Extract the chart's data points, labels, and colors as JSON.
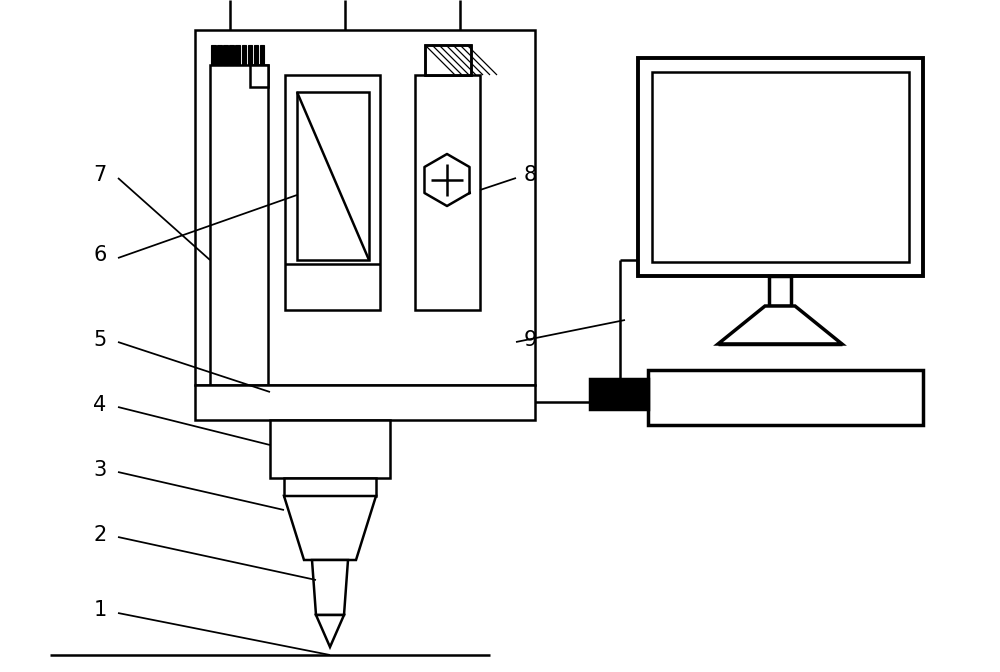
{
  "bg_color": "#ffffff",
  "line_color": "#000000",
  "lw": 1.8,
  "label_fontsize": 15
}
